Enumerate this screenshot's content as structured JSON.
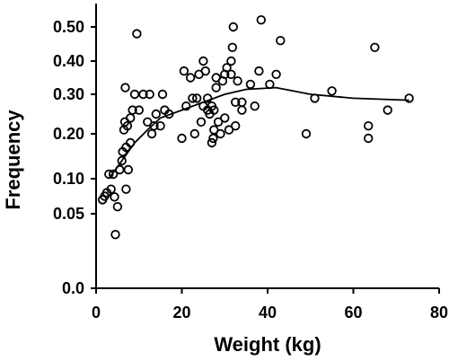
{
  "chart_data": {
    "type": "scatter",
    "xlabel": "Weight (kg)",
    "ylabel": "Frequency",
    "xlim": [
      0,
      80
    ],
    "x_ticks": [
      "0",
      "20",
      "40",
      "60",
      "80"
    ],
    "y_ticks": [
      {
        "value": 0.0,
        "label": "0.0"
      },
      {
        "value": 0.05,
        "label": "0.05"
      },
      {
        "value": 0.1,
        "label": "0.10"
      },
      {
        "value": 0.2,
        "label": "0.20"
      },
      {
        "value": 0.3,
        "label": "0.30"
      },
      {
        "value": 0.4,
        "label": "0.40"
      },
      {
        "value": 0.5,
        "label": "0.50"
      }
    ],
    "points": [
      [
        1.5,
        0.07
      ],
      [
        2.0,
        0.075
      ],
      [
        2.5,
        0.08
      ],
      [
        3.0,
        0.11
      ],
      [
        3.5,
        0.085
      ],
      [
        4.0,
        0.11
      ],
      [
        4.3,
        0.074
      ],
      [
        4.5,
        0.036
      ],
      [
        5.0,
        0.06
      ],
      [
        5.5,
        0.12
      ],
      [
        6.0,
        0.14
      ],
      [
        6.2,
        0.16
      ],
      [
        6.5,
        0.21
      ],
      [
        6.7,
        0.23
      ],
      [
        6.8,
        0.32
      ],
      [
        7.0,
        0.17
      ],
      [
        7.0,
        0.085
      ],
      [
        7.3,
        0.22
      ],
      [
        7.5,
        0.12
      ],
      [
        8.0,
        0.24
      ],
      [
        8.0,
        0.18
      ],
      [
        8.5,
        0.26
      ],
      [
        9.0,
        0.3
      ],
      [
        9.5,
        0.48
      ],
      [
        10.0,
        0.26
      ],
      [
        11.0,
        0.3
      ],
      [
        12.0,
        0.23
      ],
      [
        12.5,
        0.3
      ],
      [
        13.0,
        0.2
      ],
      [
        13.5,
        0.22
      ],
      [
        14.0,
        0.25
      ],
      [
        15.0,
        0.22
      ],
      [
        15.5,
        0.3
      ],
      [
        16.0,
        0.26
      ],
      [
        17.0,
        0.25
      ],
      [
        20.0,
        0.19
      ],
      [
        20.5,
        0.37
      ],
      [
        21.0,
        0.27
      ],
      [
        22.0,
        0.35
      ],
      [
        22.5,
        0.29
      ],
      [
        23.0,
        0.2
      ],
      [
        23.5,
        0.29
      ],
      [
        24.0,
        0.36
      ],
      [
        24.5,
        0.23
      ],
      [
        25.0,
        0.27
      ],
      [
        25.0,
        0.4
      ],
      [
        25.5,
        0.37
      ],
      [
        26.0,
        0.26
      ],
      [
        26.0,
        0.29
      ],
      [
        26.5,
        0.25
      ],
      [
        27.0,
        0.27
      ],
      [
        27.0,
        0.18
      ],
      [
        27.3,
        0.19
      ],
      [
        27.5,
        0.21
      ],
      [
        27.5,
        0.26
      ],
      [
        28.0,
        0.32
      ],
      [
        28.0,
        0.35
      ],
      [
        28.5,
        0.23
      ],
      [
        29.0,
        0.2
      ],
      [
        29.5,
        0.34
      ],
      [
        30.0,
        0.36
      ],
      [
        30.0,
        0.24
      ],
      [
        30.5,
        0.38
      ],
      [
        31.0,
        0.21
      ],
      [
        31.5,
        0.36
      ],
      [
        31.5,
        0.4
      ],
      [
        31.8,
        0.44
      ],
      [
        32.0,
        0.5
      ],
      [
        32.5,
        0.22
      ],
      [
        32.5,
        0.28
      ],
      [
        33.0,
        0.34
      ],
      [
        34.0,
        0.28
      ],
      [
        34.0,
        0.26
      ],
      [
        36.0,
        0.33
      ],
      [
        37.0,
        0.27
      ],
      [
        38.0,
        0.37
      ],
      [
        38.5,
        0.53
      ],
      [
        40.5,
        0.33
      ],
      [
        42.0,
        0.36
      ],
      [
        43.0,
        0.46
      ],
      [
        49.0,
        0.2
      ],
      [
        51.0,
        0.29
      ],
      [
        55.0,
        0.31
      ],
      [
        63.5,
        0.22
      ],
      [
        63.5,
        0.19
      ],
      [
        65.0,
        0.44
      ],
      [
        68.0,
        0.26
      ],
      [
        73.0,
        0.29
      ]
    ],
    "trend_line": [
      [
        3,
        0.1
      ],
      [
        6,
        0.14
      ],
      [
        9,
        0.18
      ],
      [
        12,
        0.21
      ],
      [
        15,
        0.24
      ],
      [
        20,
        0.26
      ],
      [
        25,
        0.28
      ],
      [
        30,
        0.3
      ],
      [
        35,
        0.315
      ],
      [
        42,
        0.32
      ],
      [
        50,
        0.3
      ],
      [
        60,
        0.29
      ],
      [
        73,
        0.285
      ]
    ],
    "grid": false,
    "legend": "none"
  }
}
